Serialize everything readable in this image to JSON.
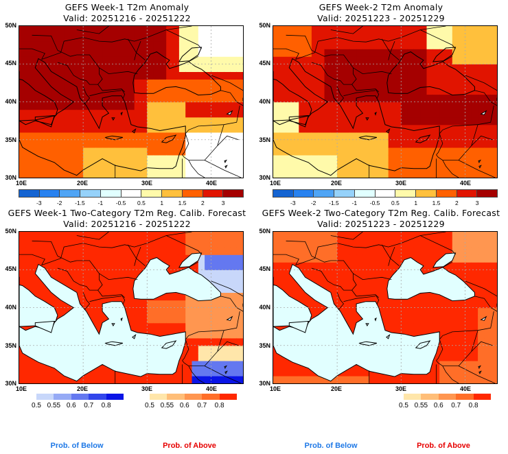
{
  "panels": [
    {
      "id": "week1-anomaly",
      "title": "GEFS Week-1 T2m Anomaly",
      "valid": "Valid: 20251216 - 20251222",
      "type": "anomaly"
    },
    {
      "id": "week2-anomaly",
      "title": "GEFS Week-2 T2m Anomaly",
      "valid": "Valid: 20251223 - 20251229",
      "type": "anomaly"
    },
    {
      "id": "week1-twocat",
      "title": "GEFS Week-1 Two-Category T2m Reg. Calib. Forecast",
      "valid": "Valid: 20251216 - 20251222",
      "type": "prob"
    },
    {
      "id": "week2-twocat",
      "title": "GEFS Week-2 Two-Category T2m Reg. Calib. Forecast",
      "valid": "Valid: 20251223 - 20251229",
      "type": "prob"
    }
  ],
  "axes": {
    "lat_labels": [
      "50N",
      "45N",
      "40N",
      "35N",
      "30N"
    ],
    "lon_labels": [
      "10E",
      "20E",
      "30E",
      "40E"
    ]
  },
  "anomaly_colorbar": {
    "labels": [
      "-3",
      "-2",
      "-1.5",
      "-1",
      "-0.5",
      "0.5",
      "1",
      "1.5",
      "2",
      "3"
    ],
    "colors": [
      "#1464d2",
      "#2882f0",
      "#50a5f5",
      "#96d2fa",
      "#e1ffff",
      "#ffffff",
      "#fffaaa",
      "#ffc03c",
      "#ff6000",
      "#e11400",
      "#a50000"
    ]
  },
  "prob_colorbars": {
    "below": {
      "labels": [
        "0.5",
        "0.55",
        "0.6",
        "0.7",
        "0.8"
      ],
      "colors": [
        "#c8d7fa",
        "#96aaf5",
        "#6478f0",
        "#3246eb",
        "#0a14e6"
      ]
    },
    "above": {
      "labels": [
        "0.5",
        "0.55",
        "0.6",
        "0.7",
        "0.8"
      ],
      "colors": [
        "#ffe6aa",
        "#ffbe78",
        "#ff9650",
        "#ff6e28",
        "#ff2800"
      ]
    }
  },
  "footer": {
    "below_label": "Prob. of Below",
    "above_label": "Prob. of Above",
    "below_color": "#1e78e6",
    "above_color": "#e60000"
  },
  "map_colors": {
    "sea": "#e1ffff",
    "grid": "#aaaaaa"
  }
}
